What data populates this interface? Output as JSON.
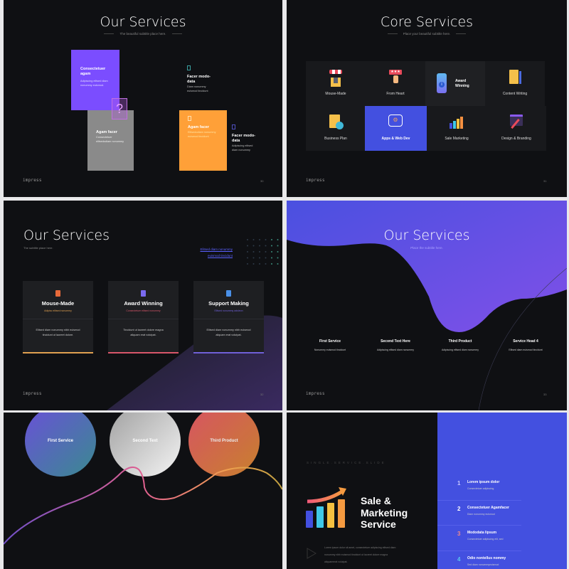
{
  "brand": "impress",
  "slide1": {
    "title": "Our Services",
    "subtitle": "The beautiful subtitle place here.",
    "page": "30",
    "cards": [
      {
        "title": "Consectetuer agam",
        "text": "Adipiscing elitsed diam nonummy euismod.",
        "color": "#7b4dff"
      },
      {
        "title": "Agam facer",
        "text": "Consectetuer elitsedodiam nonummy",
        "color": "#8a8a8a"
      },
      {
        "title": "Agam facer",
        "text": "Elitsedodiam nonummy euismod tincidunt",
        "color": "#ffa038"
      }
    ],
    "side_items": [
      {
        "title": "Facer modo-data",
        "text": "Diam nonummy euismod tincidunt"
      },
      {
        "title": "Facer modo-data",
        "text": "Adipiscing elitsed diam nonummy"
      }
    ]
  },
  "slide2": {
    "title": "Core Services",
    "subtitle": "Place your beautiful subtitle here.",
    "page": "31",
    "cells": [
      {
        "label": "Mouse-Made",
        "icon": "shop-icon"
      },
      {
        "label": "From Heart",
        "icon": "rating-click-icon"
      },
      {
        "label": "Award Winning",
        "icon": "phone-info-icon"
      },
      {
        "label": "Content Writing",
        "icon": "document-pencil-icon"
      },
      {
        "label": "Business Plan",
        "icon": "clipboard-check-icon"
      },
      {
        "label": "Apps & Web Dev",
        "icon": "app-settings-icon"
      },
      {
        "label": "Sale Marketing",
        "icon": "bar-chart-growth-icon"
      },
      {
        "label": "Design & Branding",
        "icon": "brush-icon"
      }
    ],
    "accent": "#4350e0"
  },
  "slide3": {
    "title": "Our Services",
    "subtitle": "The subtitle place here.",
    "link": [
      "Elitsed diam nonummy",
      "euismod tincidunt"
    ],
    "page": "32",
    "cards": [
      {
        "title": "Mouse-Made",
        "sub": "Adipisc elitsed nonummy",
        "text": [
          "Elitsed diam nonummy nibh euismod",
          "tincidunt ut laoreet dolore."
        ],
        "color": "#e0a050"
      },
      {
        "title": "Award Winning",
        "sub": "Consectetuer elitsed nonummy",
        "text": [
          "Tincidunt ut laoreet dolore magna",
          "aliquam erat volutpat."
        ],
        "color": "#d8566a"
      },
      {
        "title": "Support Making",
        "sub": "Elitsed nonummy adsleon",
        "text": [
          "Elitsed diam nonummy nibh euismod",
          "aliquam erat volutpat."
        ],
        "color": "#7060d8"
      }
    ]
  },
  "slide4": {
    "title": "Our Services",
    "subtitle": "Place the subtitle here.",
    "page": "33",
    "columns": [
      {
        "title": "First Service",
        "text": "Nonummy euismod tincidunt"
      },
      {
        "title": "Second Text Here",
        "text": "Adipiscing elitsed diam nonummy"
      },
      {
        "title": "Third Product",
        "text": "Adipiscing elitsed diam nonummy"
      },
      {
        "title": "Service Head 4",
        "text": "Elitsed diam euismod tincidunt"
      }
    ]
  },
  "slide5": {
    "circles": [
      "First Service",
      "Second Text",
      "Third Product"
    ]
  },
  "slide6": {
    "kicker": "SINGLE.SERVICE.SLIDE",
    "title": [
      "Sale &",
      "Marketing",
      "Service"
    ],
    "paragraph": [
      "Lorem ipsum dolor sit amet, consectetuer adipiscing elitsed diam",
      "nonummy nibh euismod tincidunt ut laoreet dolore magna",
      "aliquamerat volutpat."
    ],
    "items": [
      {
        "num": "1",
        "title": "Lorem ipsum dolor",
        "text": "Consectetuer adipiscing",
        "color": "#c8c8ff"
      },
      {
        "num": "2",
        "title": "Consectetuer Agamfacer",
        "text": "Diam nonummy euismod",
        "color": "#ffffff"
      },
      {
        "num": "3",
        "title": "Mododata lipsum",
        "text": "Consectetuer adipiscing elit, sed",
        "color": "#f08a8a"
      },
      {
        "num": "4",
        "title": "Odio nontellus nommy",
        "text": "Sed diam nonummyeuismod",
        "color": "#5ac8f0"
      }
    ],
    "panel_color": "#4350e0"
  }
}
